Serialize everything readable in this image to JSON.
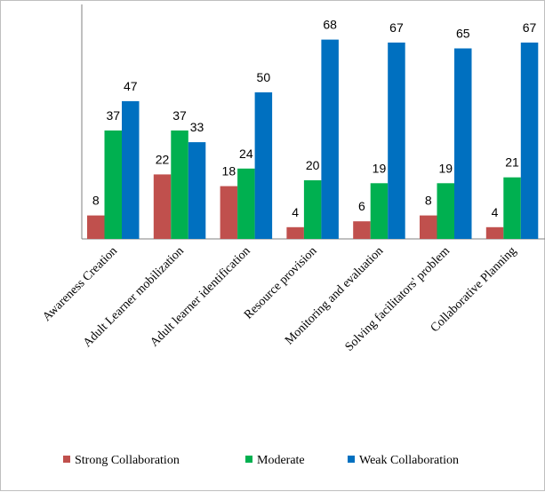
{
  "chart_data": {
    "type": "bar",
    "title": "",
    "xlabel": "",
    "ylabel": "",
    "ylim": [
      0,
      70
    ],
    "grid": false,
    "legend_position": "bottom",
    "categories": [
      "Awareness Creation",
      "Adult Learner mobilization",
      "Adult learner identification",
      "Resource provision",
      "Monitoring and evaluation",
      "Solving facilitators' problem",
      "Collaborative Planning"
    ],
    "series": [
      {
        "name": "Strong Collaboration",
        "color": "#c0504d",
        "values": [
          8,
          22,
          18,
          4,
          6,
          8,
          4
        ]
      },
      {
        "name": "Moderate",
        "color": "#00b050",
        "values": [
          37,
          37,
          24,
          20,
          19,
          19,
          21
        ]
      },
      {
        "name": "Weak Collaboration",
        "color": "#0070c0",
        "values": [
          47,
          33,
          50,
          68,
          67,
          65,
          67
        ]
      }
    ]
  }
}
